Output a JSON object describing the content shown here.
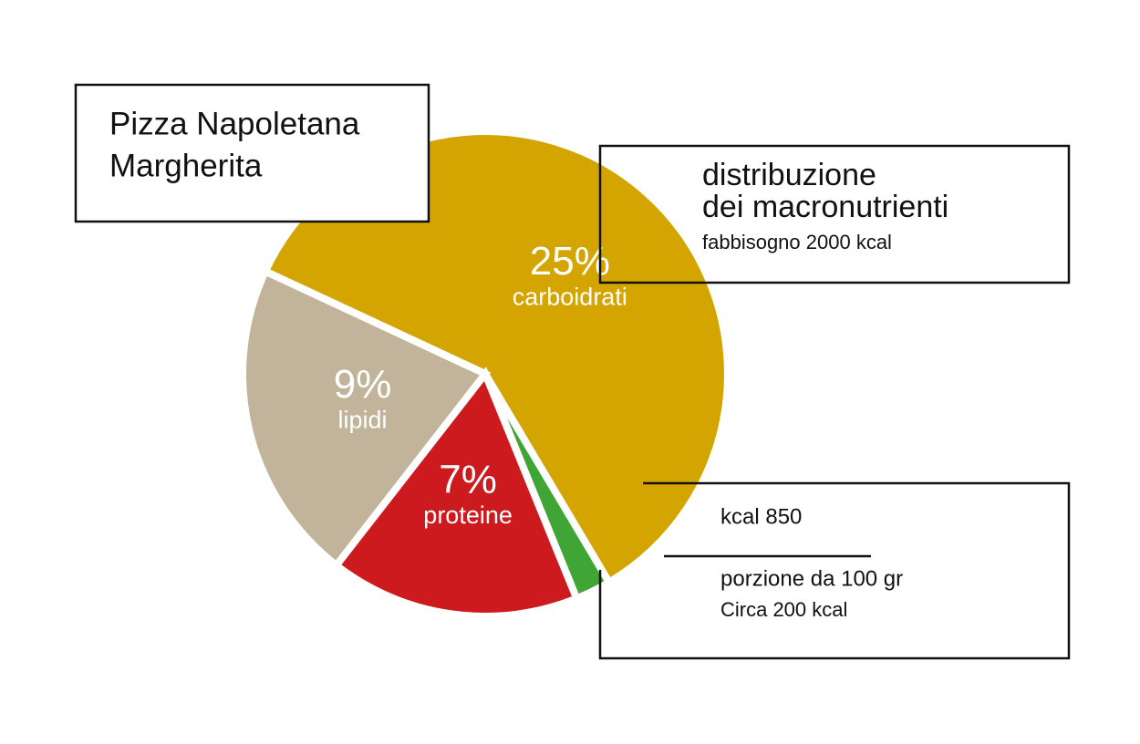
{
  "chart_data": {
    "type": "pie",
    "title": [
      "Pizza Napoletana",
      "Margherita"
    ],
    "subtitle": [
      "distribuzione",
      "dei macronutrienti",
      "fabbisogno 2000 kcal"
    ],
    "annotations": [
      "kcal 850",
      "porzione da  100 gr",
      "Circa 200 kcal"
    ],
    "categories": [
      "carboidrati",
      null,
      "proteine",
      "lipidi"
    ],
    "values": [
      25,
      1,
      7,
      9
    ],
    "value_labels": [
      "25%",
      null,
      "7%",
      "9%"
    ],
    "colors": [
      "#d4a500",
      "#3fa535",
      "#cc1a1f",
      "#c2b49b"
    ]
  }
}
